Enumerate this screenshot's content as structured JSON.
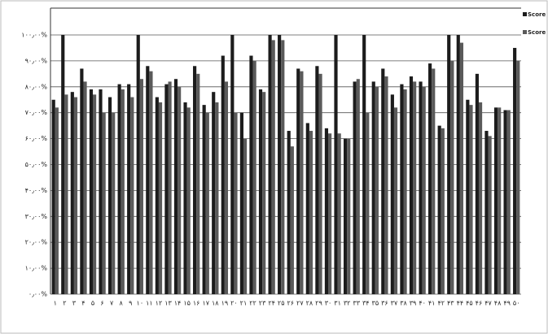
{
  "chart_data": {
    "type": "bar",
    "categories": [
      "۱",
      "۲",
      "۳",
      "۴",
      "۵",
      "۶",
      "۷",
      "۸",
      "۹",
      "۱۰",
      "۱۱",
      "۱۲",
      "۱۳",
      "۱۴",
      "۱۵",
      "۱۶",
      "۱۷",
      "۱۸",
      "۱۹",
      "۲۰",
      "۲۱",
      "۲۲",
      "۲۳",
      "۲۴",
      "۲۵",
      "۲۶",
      "۲۷",
      "۲۸",
      "۲۹",
      "۳۰",
      "۳۱",
      "۳۲",
      "۳۳",
      "۳۴",
      "۳۵",
      "۳۶",
      "۳۷",
      "۳۸",
      "۳۹",
      "۴۰",
      "۴۱",
      "۴۲",
      "۴۳",
      "۴۴",
      "۴۵",
      "۴۶",
      "۴۷",
      "۴۸",
      "۴۹",
      "۵۰"
    ],
    "series": [
      {
        "name": "Score CCR",
        "color": "#1c1c1c",
        "values": [
          75,
          100,
          78,
          87,
          79,
          79,
          76,
          81,
          81,
          100,
          88,
          76,
          81,
          83,
          74,
          88,
          73,
          78,
          92,
          100,
          70,
          92,
          79,
          100,
          100,
          63,
          87,
          66,
          88,
          64,
          100,
          60,
          82,
          100,
          82,
          87,
          77,
          81,
          84,
          82,
          89,
          65,
          100,
          100,
          75,
          85,
          63,
          72,
          71,
          95
        ]
      },
      {
        "name": "Score DEA-BS",
        "color": "#5a5a5a",
        "values": [
          72,
          77,
          76,
          82,
          77,
          70,
          70,
          79,
          76,
          83,
          86,
          74,
          82,
          80,
          72,
          85,
          70,
          74,
          82,
          70,
          60,
          90,
          78,
          98,
          98,
          57,
          86,
          63,
          85,
          62,
          62,
          60,
          83,
          70,
          80,
          84,
          72,
          79,
          82,
          80,
          87,
          64,
          90,
          97,
          73,
          74,
          61,
          72,
          71,
          90
        ]
      }
    ],
    "ylim": [
      0,
      100
    ],
    "yticks": [
      {
        "value": 0,
        "label": "۰٫۰۰%"
      },
      {
        "value": 10,
        "label": "۱۰٫۰۰%"
      },
      {
        "value": 20,
        "label": "۲۰٫۰۰%"
      },
      {
        "value": 30,
        "label": "۳۰٫۰۰%"
      },
      {
        "value": 40,
        "label": "۴۰٫۰۰%"
      },
      {
        "value": 50,
        "label": "۵۰٫۰۰%"
      },
      {
        "value": 60,
        "label": "۶۰٫۰۰%"
      },
      {
        "value": 70,
        "label": "۷۰٫۰۰%"
      },
      {
        "value": 80,
        "label": "۸۰٫۰۰%"
      },
      {
        "value": 90,
        "label": "۹۰٫۰۰%"
      },
      {
        "value": 100,
        "label": "۱۰۰٫۰۰%"
      }
    ],
    "grid": true
  }
}
